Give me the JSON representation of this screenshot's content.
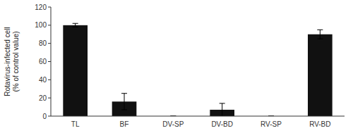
{
  "chart_data": {
    "type": "bar",
    "categories": [
      "TL",
      "BF",
      "DV-SP",
      "DV-BD",
      "RV-SP",
      "RV-BD"
    ],
    "values": [
      100,
      16,
      0,
      7,
      0,
      90
    ],
    "errors": [
      2,
      9,
      0,
      7,
      0,
      5
    ],
    "color": "#111111",
    "ylabel": "Rotavirus-infected cell\n(% of control value)",
    "ylim": [
      0,
      120
    ],
    "yticks": [
      0,
      20,
      40,
      60,
      80,
      100,
      120
    ],
    "grid": false
  }
}
